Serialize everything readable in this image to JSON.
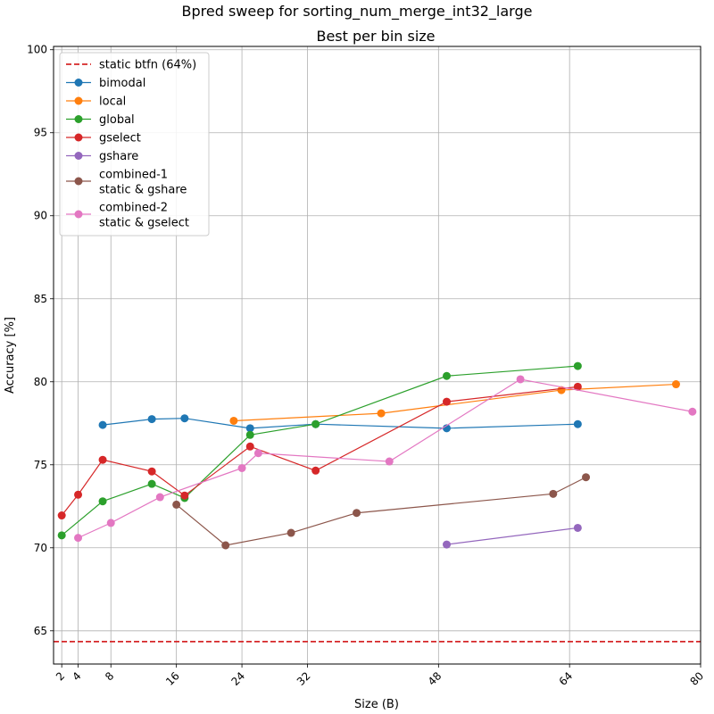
{
  "chart_data": {
    "type": "line",
    "title": "Bpred sweep for sorting_num_merge_int32_large",
    "subtitle": "Best per bin size",
    "xlabel": "Size (B)",
    "ylabel": "Accuracy [%]",
    "xlim": [
      1,
      80
    ],
    "ylim": [
      63,
      100.2
    ],
    "xticks": [
      2,
      4,
      8,
      16,
      24,
      32,
      48,
      64,
      80
    ],
    "yticks": [
      65,
      70,
      75,
      80,
      85,
      90,
      95,
      100
    ],
    "grid": true,
    "legend_position": "upper-left",
    "reference_line": {
      "name": "static btfn (64%)",
      "y": 64.35,
      "color": "#d62728"
    },
    "series": [
      {
        "name": "bimodal",
        "color": "#1f77b4",
        "points": [
          [
            7,
            77.4
          ],
          [
            13,
            77.75
          ],
          [
            17,
            77.8
          ],
          [
            25,
            77.2
          ],
          [
            33,
            77.45
          ],
          [
            49,
            77.2
          ],
          [
            65,
            77.45
          ]
        ]
      },
      {
        "name": "local",
        "color": "#ff7f0e",
        "points": [
          [
            23,
            77.65
          ],
          [
            41,
            78.1
          ],
          [
            63,
            79.5
          ],
          [
            77,
            79.85
          ]
        ]
      },
      {
        "name": "global",
        "color": "#2ca02c",
        "points": [
          [
            2,
            70.75
          ],
          [
            7,
            72.8
          ],
          [
            13,
            73.85
          ],
          [
            17,
            73.0
          ],
          [
            25,
            76.8
          ],
          [
            33,
            77.45
          ],
          [
            49,
            80.35
          ],
          [
            65,
            80.95
          ]
        ]
      },
      {
        "name": "gselect",
        "color": "#d62728",
        "points": [
          [
            2,
            71.95
          ],
          [
            4,
            73.2
          ],
          [
            7,
            75.3
          ],
          [
            13,
            74.6
          ],
          [
            17,
            73.15
          ],
          [
            25,
            76.1
          ],
          [
            33,
            74.65
          ],
          [
            49,
            78.8
          ],
          [
            65,
            79.7
          ]
        ]
      },
      {
        "name": "gshare",
        "color": "#9467bd",
        "points": [
          [
            49,
            70.2
          ],
          [
            65,
            71.2
          ]
        ]
      },
      {
        "name": "combined-1\nstatic & gshare",
        "color": "#8c564b",
        "points": [
          [
            16,
            72.6
          ],
          [
            22,
            70.15
          ],
          [
            30,
            70.9
          ],
          [
            38,
            72.1
          ],
          [
            62,
            73.25
          ],
          [
            66,
            74.25
          ]
        ]
      },
      {
        "name": "combined-2\nstatic & gselect",
        "color": "#e377c2",
        "points": [
          [
            4,
            70.6
          ],
          [
            8,
            71.5
          ],
          [
            14,
            73.05
          ],
          [
            24,
            74.8
          ],
          [
            26,
            75.7
          ],
          [
            42,
            75.2
          ],
          [
            58,
            80.15
          ],
          [
            79,
            78.2
          ]
        ]
      }
    ]
  }
}
